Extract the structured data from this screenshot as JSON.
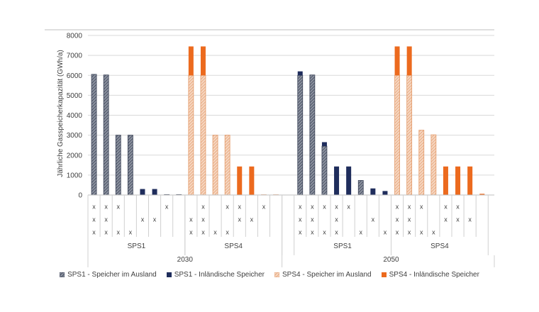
{
  "chart_data": {
    "type": "bar",
    "ylabel": "Jährliche Gasspeicherkapazität (GWh/a)",
    "ylim": [
      0,
      8000
    ],
    "yticks": [
      "0",
      "1000",
      "2000",
      "3000",
      "4000",
      "5000",
      "6000",
      "7000",
      "8000"
    ],
    "grid": true,
    "legend_position": "bottom",
    "years": [
      "2030",
      "2050"
    ],
    "scenario_labels": [
      "SPS1",
      "SPS4",
      "SPS1",
      "SPS4"
    ],
    "series": [
      {
        "name": "SPS1 - Speicher im Ausland",
        "color": "#5b6375",
        "pattern": "hatch-dark"
      },
      {
        "name": "SPS1 - Inländische Speicher",
        "color": "#1f2d5c",
        "pattern": "solid"
      },
      {
        "name": "SPS4 - Speicher im Ausland",
        "color": "#e6a57a",
        "pattern": "hatch-light"
      },
      {
        "name": "SPS4 - Inländische Speicher",
        "color": "#ec6a1e",
        "pattern": "solid"
      }
    ],
    "groups": [
      {
        "year": "2030",
        "scenario": "SPS1",
        "columns": [
          {
            "abroad": 6050,
            "domestic": 0,
            "marks": [
              "x",
              "x",
              "x"
            ]
          },
          {
            "abroad": 6020,
            "domestic": 0,
            "marks": [
              "x",
              "x",
              "x"
            ]
          },
          {
            "abroad": 3000,
            "domestic": 0,
            "marks": [
              "x",
              "",
              "x"
            ]
          },
          {
            "abroad": 3000,
            "domestic": 0,
            "marks": [
              "",
              "",
              "x"
            ]
          },
          {
            "abroad": 0,
            "domestic": 300,
            "marks": [
              "",
              "x",
              ""
            ]
          },
          {
            "abroad": 0,
            "domestic": 300,
            "marks": [
              "",
              "x",
              ""
            ]
          },
          {
            "abroad": 20,
            "domestic": 0,
            "marks": [
              "x",
              "",
              ""
            ]
          },
          {
            "abroad": 20,
            "domestic": 0,
            "marks": [
              "",
              "",
              ""
            ]
          }
        ]
      },
      {
        "year": "2030",
        "scenario": "SPS4",
        "columns": [
          {
            "abroad": 6000,
            "domestic": 1450,
            "marks": [
              "",
              "x",
              "x"
            ]
          },
          {
            "abroad": 6000,
            "domestic": 1450,
            "marks": [
              "x",
              "x",
              "x"
            ]
          },
          {
            "abroad": 3000,
            "domestic": 0,
            "marks": [
              "",
              "",
              "x"
            ]
          },
          {
            "abroad": 3000,
            "domestic": 0,
            "marks": [
              "x",
              "",
              "x"
            ]
          },
          {
            "abroad": 0,
            "domestic": 1430,
            "marks": [
              "x",
              "x",
              ""
            ]
          },
          {
            "abroad": 0,
            "domestic": 1430,
            "marks": [
              "",
              "x",
              ""
            ]
          },
          {
            "abroad": 15,
            "domestic": 0,
            "marks": [
              "x",
              "",
              ""
            ]
          },
          {
            "abroad": 15,
            "domestic": 0,
            "marks": [
              "",
              "",
              ""
            ]
          }
        ]
      },
      {
        "year": "2050",
        "scenario": "SPS1",
        "columns": [
          {
            "abroad": 6000,
            "domestic": 200,
            "marks": [
              "x",
              "x",
              "x"
            ]
          },
          {
            "abroad": 6020,
            "domestic": 0,
            "marks": [
              "x",
              "x",
              "x"
            ]
          },
          {
            "abroad": 2450,
            "domestic": 200,
            "marks": [
              "x",
              "",
              "x"
            ]
          },
          {
            "abroad": 0,
            "domestic": 1430,
            "marks": [
              "x",
              "x",
              "x"
            ]
          },
          {
            "abroad": 0,
            "domestic": 1430,
            "marks": [
              "x",
              "",
              ""
            ]
          },
          {
            "abroad": 730,
            "domestic": 0,
            "marks": [
              "",
              "",
              "x"
            ]
          },
          {
            "abroad": 0,
            "domestic": 330,
            "marks": [
              "",
              "x",
              ""
            ]
          },
          {
            "abroad": 0,
            "domestic": 200,
            "marks": [
              "",
              "",
              "x"
            ]
          }
        ]
      },
      {
        "year": "2050",
        "scenario": "SPS4",
        "columns": [
          {
            "abroad": 6000,
            "domestic": 1450,
            "marks": [
              "x",
              "x",
              "x"
            ]
          },
          {
            "abroad": 6000,
            "domestic": 1450,
            "marks": [
              "x",
              "x",
              "x"
            ]
          },
          {
            "abroad": 3250,
            "domestic": 0,
            "marks": [
              "x",
              "",
              "x"
            ]
          },
          {
            "abroad": 3020,
            "domestic": 0,
            "marks": [
              "",
              "",
              "x"
            ]
          },
          {
            "abroad": 0,
            "domestic": 1430,
            "marks": [
              "x",
              "x",
              ""
            ]
          },
          {
            "abroad": 0,
            "domestic": 1430,
            "marks": [
              "x",
              "x",
              ""
            ]
          },
          {
            "abroad": 0,
            "domestic": 1430,
            "marks": [
              "",
              "x",
              ""
            ]
          },
          {
            "abroad": 0,
            "domestic": 60,
            "marks": [
              "",
              "",
              ""
            ]
          }
        ]
      }
    ]
  }
}
